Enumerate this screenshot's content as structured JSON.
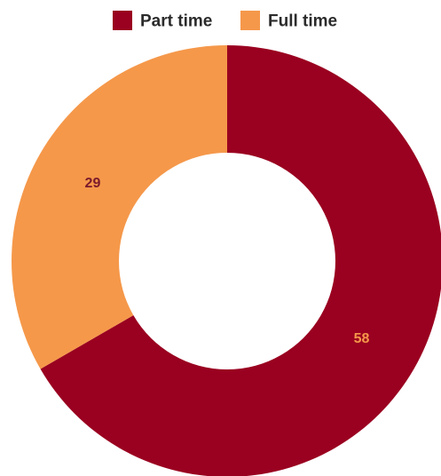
{
  "chart_data": {
    "type": "pie",
    "subtype": "donut",
    "title": "",
    "categories": [
      "Part time",
      "Full time"
    ],
    "values": [
      58,
      29
    ],
    "colors": [
      "#9a0020",
      "#f5984a"
    ],
    "label_colors": [
      "#f5984a",
      "#7a1a2c"
    ],
    "legend": {
      "position": "top",
      "items": [
        {
          "label": "Part time",
          "color": "#9a0020"
        },
        {
          "label": "Full time",
          "color": "#f5984a"
        }
      ]
    },
    "start_angle": "12 o'clock",
    "direction": "clockwise"
  }
}
